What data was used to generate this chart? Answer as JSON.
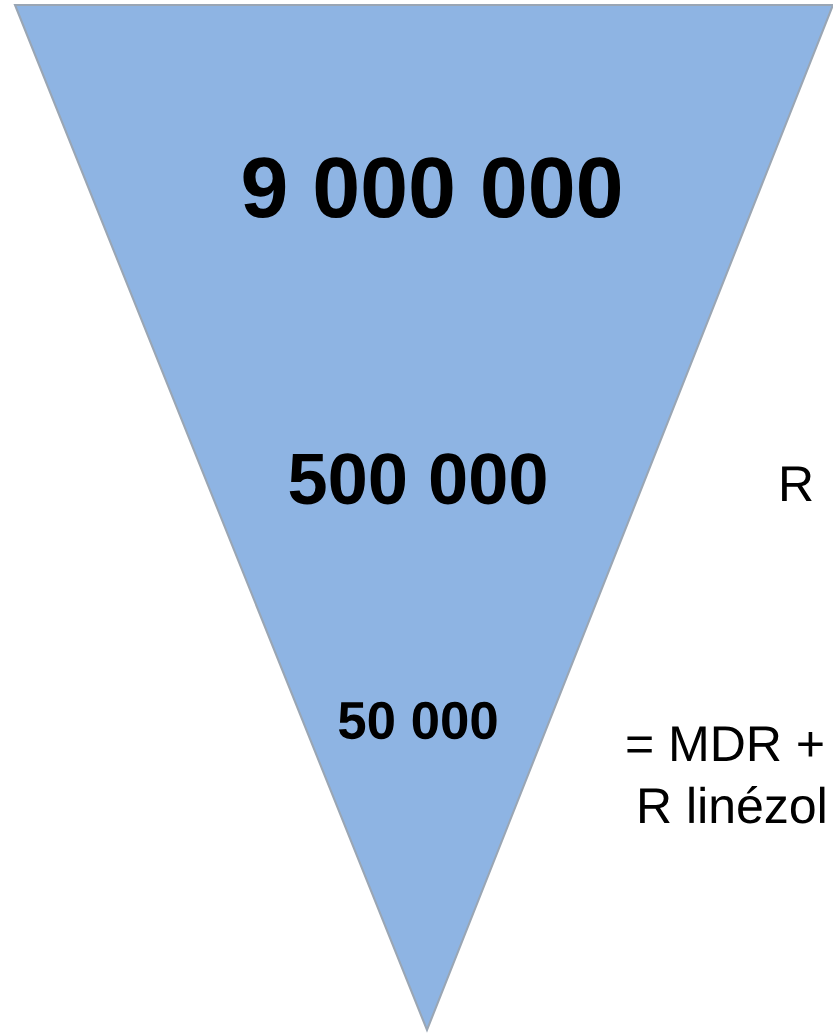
{
  "chart_data": {
    "type": "other",
    "categories": [
      null,
      null,
      null
    ],
    "values": [
      9000000,
      500000,
      50000
    ],
    "data_labels": true,
    "color": "#8eb4e3",
    "annotations": [
      "R",
      "= MDR +",
      "R linézol"
    ]
  }
}
